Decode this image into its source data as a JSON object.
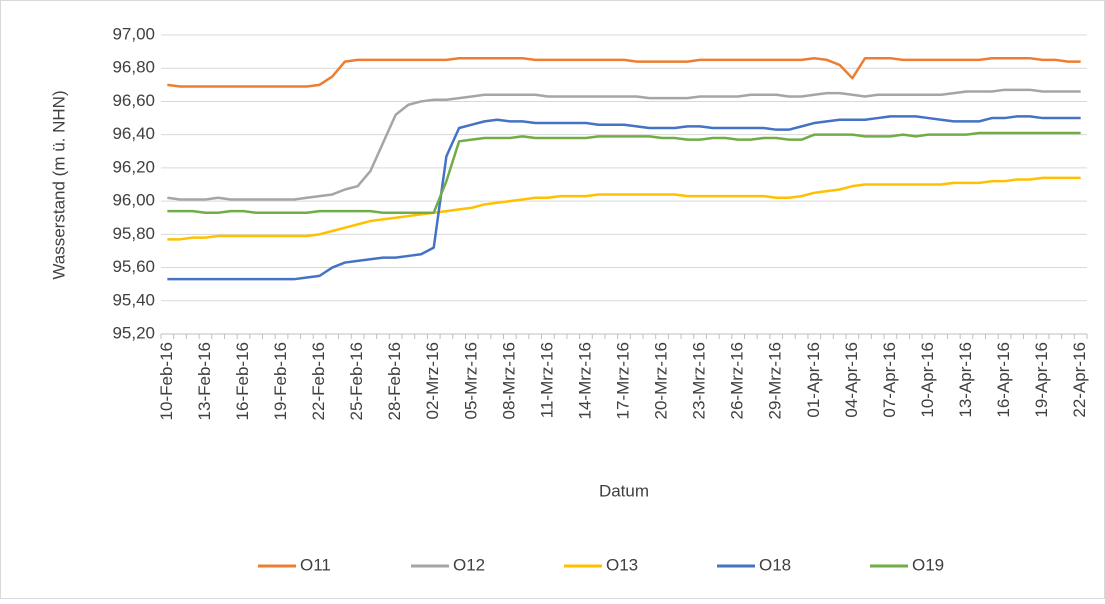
{
  "chart_data": {
    "type": "line",
    "x_label": "Datum",
    "y_label": "Wasserstand (m ü. NHN)",
    "categories": [
      "10-Feb-16",
      null,
      null,
      "13-Feb-16",
      null,
      null,
      "16-Feb-16",
      null,
      null,
      "19-Feb-16",
      null,
      null,
      "22-Feb-16",
      null,
      null,
      "25-Feb-16",
      null,
      null,
      "28-Feb-16",
      null,
      null,
      "02-Mrz-16",
      null,
      null,
      "05-Mrz-16",
      null,
      null,
      "08-Mrz-16",
      null,
      null,
      "11-Mrz-16",
      null,
      null,
      "14-Mrz-16",
      null,
      null,
      "17-Mrz-16",
      null,
      null,
      "20-Mrz-16",
      null,
      null,
      "23-Mrz-16",
      null,
      null,
      "26-Mrz-16",
      null,
      null,
      "29-Mrz-16",
      null,
      null,
      "01-Apr-16",
      null,
      null,
      "04-Apr-16",
      null,
      null,
      "07-Apr-16",
      null,
      null,
      "10-Apr-16",
      null,
      null,
      "13-Apr-16",
      null,
      null,
      "16-Apr-16",
      null,
      null,
      "19-Apr-16",
      null,
      null,
      "22-Apr-16"
    ],
    "series": [
      {
        "name": "O11",
        "color": "#ed7d31",
        "values": [
          96.7,
          96.69,
          96.69,
          96.69,
          96.69,
          96.69,
          96.69,
          96.69,
          96.69,
          96.69,
          96.69,
          96.69,
          96.7,
          96.75,
          96.84,
          96.85,
          96.85,
          96.85,
          96.85,
          96.85,
          96.85,
          96.85,
          96.85,
          96.86,
          96.86,
          96.86,
          96.86,
          96.86,
          96.86,
          96.85,
          96.85,
          96.85,
          96.85,
          96.85,
          96.85,
          96.85,
          96.85,
          96.84,
          96.84,
          96.84,
          96.84,
          96.84,
          96.85,
          96.85,
          96.85,
          96.85,
          96.85,
          96.85,
          96.85,
          96.85,
          96.85,
          96.86,
          96.85,
          96.82,
          96.74,
          96.86,
          96.86,
          96.86,
          96.85,
          96.85,
          96.85,
          96.85,
          96.85,
          96.85,
          96.85,
          96.86,
          96.86,
          96.86,
          96.86,
          96.85,
          96.85,
          96.84,
          96.84
        ]
      },
      {
        "name": "O12",
        "color": "#a5a5a5",
        "values": [
          96.02,
          96.01,
          96.01,
          96.01,
          96.02,
          96.01,
          96.01,
          96.01,
          96.01,
          96.01,
          96.01,
          96.02,
          96.03,
          96.04,
          96.07,
          96.09,
          96.18,
          96.35,
          96.52,
          96.58,
          96.6,
          96.61,
          96.61,
          96.62,
          96.63,
          96.64,
          96.64,
          96.64,
          96.64,
          96.64,
          96.63,
          96.63,
          96.63,
          96.63,
          96.63,
          96.63,
          96.63,
          96.63,
          96.62,
          96.62,
          96.62,
          96.62,
          96.63,
          96.63,
          96.63,
          96.63,
          96.64,
          96.64,
          96.64,
          96.63,
          96.63,
          96.64,
          96.65,
          96.65,
          96.64,
          96.63,
          96.64,
          96.64,
          96.64,
          96.64,
          96.64,
          96.64,
          96.65,
          96.66,
          96.66,
          96.66,
          96.67,
          96.67,
          96.67,
          96.66,
          96.66,
          96.66,
          96.66
        ]
      },
      {
        "name": "O13",
        "color": "#ffc000",
        "values": [
          95.77,
          95.77,
          95.78,
          95.78,
          95.79,
          95.79,
          95.79,
          95.79,
          95.79,
          95.79,
          95.79,
          95.79,
          95.8,
          95.82,
          95.84,
          95.86,
          95.88,
          95.89,
          95.9,
          95.91,
          95.92,
          95.93,
          95.94,
          95.95,
          95.96,
          95.98,
          95.99,
          96.0,
          96.01,
          96.02,
          96.02,
          96.03,
          96.03,
          96.03,
          96.04,
          96.04,
          96.04,
          96.04,
          96.04,
          96.04,
          96.04,
          96.03,
          96.03,
          96.03,
          96.03,
          96.03,
          96.03,
          96.03,
          96.02,
          96.02,
          96.03,
          96.05,
          96.06,
          96.07,
          96.09,
          96.1,
          96.1,
          96.1,
          96.1,
          96.1,
          96.1,
          96.1,
          96.11,
          96.11,
          96.11,
          96.12,
          96.12,
          96.13,
          96.13,
          96.14,
          96.14,
          96.14,
          96.14
        ]
      },
      {
        "name": "O18",
        "color": "#4472c4",
        "values": [
          95.53,
          95.53,
          95.53,
          95.53,
          95.53,
          95.53,
          95.53,
          95.53,
          95.53,
          95.53,
          95.53,
          95.54,
          95.55,
          95.6,
          95.63,
          95.64,
          95.65,
          95.66,
          95.66,
          95.67,
          95.68,
          95.72,
          96.27,
          96.44,
          96.46,
          96.48,
          96.49,
          96.48,
          96.48,
          96.47,
          96.47,
          96.47,
          96.47,
          96.47,
          96.46,
          96.46,
          96.46,
          96.45,
          96.44,
          96.44,
          96.44,
          96.45,
          96.45,
          96.44,
          96.44,
          96.44,
          96.44,
          96.44,
          96.43,
          96.43,
          96.45,
          96.47,
          96.48,
          96.49,
          96.49,
          96.49,
          96.5,
          96.51,
          96.51,
          96.51,
          96.5,
          96.49,
          96.48,
          96.48,
          96.48,
          96.5,
          96.5,
          96.51,
          96.51,
          96.5,
          96.5,
          96.5,
          96.5
        ]
      },
      {
        "name": "O19",
        "color": "#70ad47",
        "values": [
          95.94,
          95.94,
          95.94,
          95.93,
          95.93,
          95.94,
          95.94,
          95.93,
          95.93,
          95.93,
          95.93,
          95.93,
          95.94,
          95.94,
          95.94,
          95.94,
          95.94,
          95.93,
          95.93,
          95.93,
          95.93,
          95.93,
          96.12,
          96.36,
          96.37,
          96.38,
          96.38,
          96.38,
          96.39,
          96.38,
          96.38,
          96.38,
          96.38,
          96.38,
          96.39,
          96.39,
          96.39,
          96.39,
          96.39,
          96.38,
          96.38,
          96.37,
          96.37,
          96.38,
          96.38,
          96.37,
          96.37,
          96.38,
          96.38,
          96.37,
          96.37,
          96.4,
          96.4,
          96.4,
          96.4,
          96.39,
          96.39,
          96.39,
          96.4,
          96.39,
          96.4,
          96.4,
          96.4,
          96.4,
          96.41,
          96.41,
          96.41,
          96.41,
          96.41,
          96.41,
          96.41,
          96.41,
          96.41
        ]
      }
    ],
    "ylim": [
      95.2,
      97.0
    ],
    "yticks": [
      {
        "value": 95.2,
        "label": "95,20"
      },
      {
        "value": 95.4,
        "label": "95,40"
      },
      {
        "value": 95.6,
        "label": "95,60"
      },
      {
        "value": 95.8,
        "label": "95,80"
      },
      {
        "value": 96.0,
        "label": "96,00"
      },
      {
        "value": 96.2,
        "label": "96,20"
      },
      {
        "value": 96.4,
        "label": "96,40"
      },
      {
        "value": 96.6,
        "label": "96,60"
      },
      {
        "value": 96.8,
        "label": "96,80"
      },
      {
        "value": 97.0,
        "label": "97,00"
      }
    ],
    "grid": true,
    "legend": "bottom"
  }
}
